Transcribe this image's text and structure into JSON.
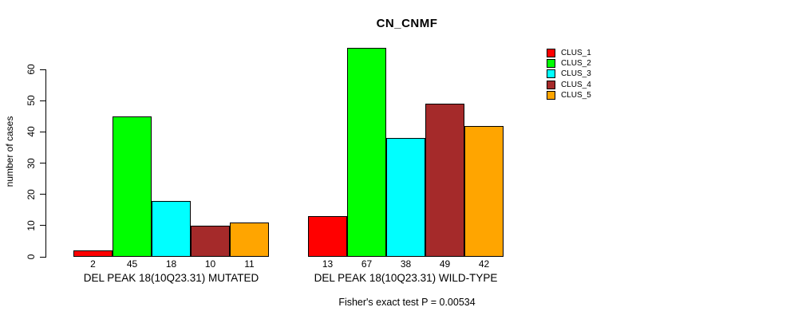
{
  "page": {
    "background_color": "#FFFFFF",
    "text_color": "#000000"
  },
  "chart_data": {
    "type": "bar",
    "title": "CN_CNMF",
    "xlabel": "",
    "ylabel": "number of cases",
    "ylim": [
      0,
      60
    ],
    "yticks": [
      0,
      10,
      20,
      30,
      40,
      50,
      60
    ],
    "grid": false,
    "legend_position": "right-outside",
    "bar_value_labels_shown": true,
    "categories": [
      "DEL PEAK 18(10Q23.31) MUTATED",
      "DEL PEAK 18(10Q23.31) WILD-TYPE"
    ],
    "series": [
      {
        "name": "CLUS_1",
        "color": "#FF0000",
        "values": [
          2,
          13
        ]
      },
      {
        "name": "CLUS_2",
        "color": "#00FF00",
        "values": [
          45,
          67
        ]
      },
      {
        "name": "CLUS_3",
        "color": "#00FFFF",
        "values": [
          18,
          38
        ]
      },
      {
        "name": "CLUS_4",
        "color": "#A52A2A",
        "values": [
          10,
          49
        ]
      },
      {
        "name": "CLUS_5",
        "color": "#FFA500",
        "values": [
          11,
          42
        ]
      }
    ],
    "annotation": "Fisher's exact test P = 0.00534"
  }
}
